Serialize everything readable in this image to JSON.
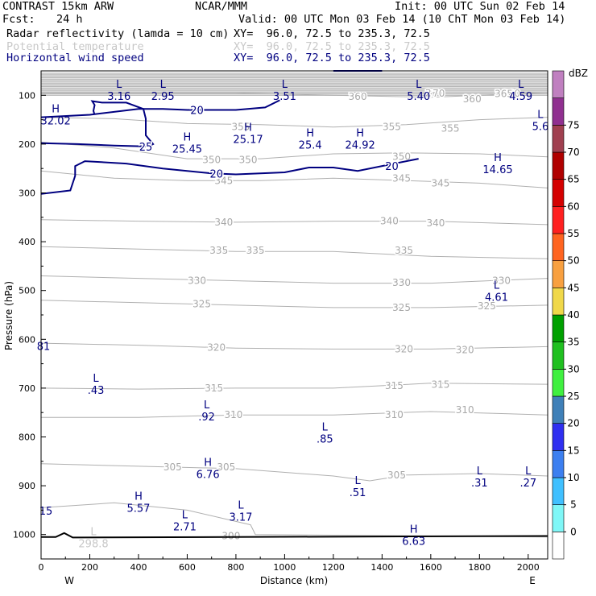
{
  "header": {
    "model": "CONTRAST 15km ARW",
    "org": "NCAR/MMM",
    "init": "Init: 00 UTC Sun 02 Feb 14",
    "fcst_label": "Fcst:",
    "fcst_value": "24 h",
    "valid": "Valid: 00 UTC Mon 03 Feb 14 (10 ChT Mon 03 Feb 14)",
    "fields": [
      {
        "name": "Radar reflectivity (lamda = 10 cm)",
        "xy": "XY=  96.0, 72.5 to 235.3, 72.5",
        "color": "#000000"
      },
      {
        "name": "Potential temperature",
        "xy": "XY=  96.0, 72.5 to 235.3, 72.5",
        "color": "#c8c8c8"
      },
      {
        "name": "Horizontal wind speed",
        "xy": "XY=  96.0, 72.5 to 235.3, 72.5",
        "color": "#000080"
      }
    ]
  },
  "chart_data": {
    "type": "contour",
    "xlabel": "Distance (km)",
    "ylabel": "Pressure (hPa)",
    "xlim": [
      0,
      2080
    ],
    "ylim": [
      1050,
      50
    ],
    "x_ticks": [
      0,
      200,
      400,
      600,
      800,
      1000,
      1200,
      1400,
      1600,
      1800,
      2000
    ],
    "y_ticks": [
      100,
      200,
      300,
      400,
      500,
      600,
      700,
      800,
      900,
      1000
    ],
    "direction_labels": {
      "left": "W",
      "right": "E"
    },
    "colorbar": {
      "unit": "dBZ",
      "levels": [
        -5,
        0,
        5,
        10,
        15,
        20,
        25,
        30,
        35,
        40,
        45,
        50,
        55,
        60,
        65,
        70,
        75,
        80
      ],
      "labels": [
        "0",
        "5",
        "10",
        "15",
        "20",
        "25",
        "30",
        "35",
        "40",
        "45",
        "50",
        "55",
        "60",
        "65",
        "70",
        "75"
      ],
      "colors": [
        "#ffffff",
        "#7ff7f7",
        "#40c0ff",
        "#3c7ff0",
        "#2f2ff0",
        "#3f80b8",
        "#40f040",
        "#20c020",
        "#00a000",
        "#f0d84a",
        "#f8a040",
        "#ff6420",
        "#ff2020",
        "#d40000",
        "#b00000",
        "#a04050",
        "#903090",
        "#c080c0"
      ]
    },
    "theta_contours": [
      {
        "level": 360,
        "points": [
          [
            0,
            95
          ],
          [
            400,
            95
          ],
          [
            800,
            95
          ],
          [
            1200,
            100
          ],
          [
            1600,
            104
          ],
          [
            1900,
            98
          ],
          [
            2080,
            94
          ]
        ],
        "labels": [
          [
            1300,
            103
          ],
          [
            1770,
            108
          ],
          [
            1930,
            96
          ]
        ]
      },
      {
        "level": 355,
        "points": [
          [
            0,
            145
          ],
          [
            300,
            148
          ],
          [
            600,
            158
          ],
          [
            900,
            160
          ],
          [
            1200,
            165
          ],
          [
            1500,
            160
          ],
          [
            1800,
            150
          ],
          [
            2080,
            145
          ]
        ],
        "labels": [
          [
            820,
            165
          ],
          [
            1440,
            165
          ],
          [
            1680,
            168
          ]
        ]
      },
      {
        "level": 350,
        "points": [
          [
            0,
            196
          ],
          [
            300,
            208
          ],
          [
            600,
            230
          ],
          [
            900,
            230
          ],
          [
            1200,
            220
          ],
          [
            1500,
            218
          ],
          [
            1800,
            220
          ],
          [
            2080,
            226
          ]
        ],
        "labels": [
          [
            700,
            232
          ],
          [
            850,
            232
          ],
          [
            1480,
            226
          ]
        ]
      },
      {
        "level": 345,
        "points": [
          [
            0,
            255
          ],
          [
            300,
            270
          ],
          [
            600,
            275
          ],
          [
            900,
            275
          ],
          [
            1200,
            270
          ],
          [
            1500,
            275
          ],
          [
            1800,
            280
          ],
          [
            2080,
            290
          ]
        ],
        "labels": [
          [
            750,
            275
          ],
          [
            1480,
            270
          ],
          [
            1640,
            280
          ]
        ]
      },
      {
        "level": 340,
        "points": [
          [
            0,
            355
          ],
          [
            400,
            358
          ],
          [
            800,
            360
          ],
          [
            1200,
            358
          ],
          [
            1600,
            358
          ],
          [
            2080,
            365
          ]
        ],
        "labels": [
          [
            750,
            360
          ],
          [
            1430,
            358
          ],
          [
            1620,
            362
          ]
        ]
      },
      {
        "level": 335,
        "points": [
          [
            0,
            410
          ],
          [
            400,
            415
          ],
          [
            800,
            420
          ],
          [
            1200,
            420
          ],
          [
            1600,
            430
          ],
          [
            2080,
            435
          ]
        ],
        "labels": [
          [
            730,
            418
          ],
          [
            880,
            418
          ],
          [
            1490,
            418
          ]
        ]
      },
      {
        "level": 330,
        "points": [
          [
            0,
            470
          ],
          [
            400,
            475
          ],
          [
            800,
            480
          ],
          [
            1200,
            485
          ],
          [
            1600,
            485
          ],
          [
            2080,
            475
          ]
        ],
        "labels": [
          [
            640,
            480
          ],
          [
            1480,
            484
          ],
          [
            1890,
            480
          ]
        ]
      },
      {
        "level": 325,
        "points": [
          [
            0,
            520
          ],
          [
            400,
            525
          ],
          [
            800,
            530
          ],
          [
            1200,
            535
          ],
          [
            1600,
            535
          ],
          [
            2080,
            530
          ]
        ],
        "labels": [
          [
            660,
            528
          ],
          [
            1480,
            535
          ],
          [
            1830,
            532
          ]
        ]
      },
      {
        "level": 320,
        "points": [
          [
            0,
            608
          ],
          [
            400,
            612
          ],
          [
            800,
            618
          ],
          [
            1200,
            620
          ],
          [
            1600,
            620
          ],
          [
            2080,
            615
          ]
        ],
        "labels": [
          [
            720,
            617
          ],
          [
            1490,
            620
          ],
          [
            1740,
            622
          ]
        ]
      },
      {
        "level": 315,
        "points": [
          [
            0,
            700
          ],
          [
            400,
            702
          ],
          [
            800,
            700
          ],
          [
            1200,
            700
          ],
          [
            1600,
            690
          ],
          [
            2080,
            692
          ]
        ],
        "labels": [
          [
            710,
            700
          ],
          [
            1450,
            695
          ],
          [
            1640,
            693
          ]
        ]
      },
      {
        "level": 310,
        "points": [
          [
            0,
            760
          ],
          [
            400,
            760
          ],
          [
            800,
            755
          ],
          [
            1200,
            755
          ],
          [
            1600,
            748
          ],
          [
            2080,
            755
          ]
        ],
        "labels": [
          [
            790,
            755
          ],
          [
            1450,
            755
          ],
          [
            1740,
            745
          ]
        ]
      },
      {
        "level": 305,
        "points": [
          [
            0,
            855
          ],
          [
            400,
            860
          ],
          [
            800,
            865
          ],
          [
            1200,
            880
          ],
          [
            1350,
            890
          ],
          [
            1500,
            878
          ],
          [
            1800,
            875
          ],
          [
            2080,
            880
          ]
        ],
        "labels": [
          [
            540,
            862
          ],
          [
            760,
            862
          ],
          [
            1460,
            878
          ]
        ]
      },
      {
        "level": 300,
        "points": [
          [
            0,
            945
          ],
          [
            300,
            935
          ],
          [
            600,
            950
          ],
          [
            860,
            980
          ],
          [
            880,
            1000
          ],
          [
            2080,
            1005
          ]
        ],
        "labels": [
          [
            780,
            1003
          ]
        ]
      }
    ],
    "theta_labels_extra": [
      {
        "text": "370",
        "x": 1620,
        "y": 96
      },
      {
        "text": "365",
        "x": 1900,
        "y": 97
      },
      {
        "text": "2",
        "x": 1590,
        "y": 95
      }
    ],
    "wind_contours": [
      {
        "level": 20,
        "points": [
          [
            0,
            145
          ],
          [
            200,
            140
          ],
          [
            400,
            128
          ],
          [
            500,
            128
          ],
          [
            600,
            130
          ],
          [
            800,
            130
          ],
          [
            920,
            125
          ],
          [
            980,
            110
          ]
        ],
        "labels": [
          [
            640,
            130
          ]
        ]
      },
      {
        "level": 25,
        "points": [
          [
            0,
            198
          ],
          [
            150,
            200
          ],
          [
            300,
            203
          ],
          [
            440,
            205
          ],
          [
            460,
            200
          ],
          [
            430,
            182
          ],
          [
            430,
            148
          ],
          [
            420,
            128
          ],
          [
            350,
            115
          ],
          [
            250,
            115
          ],
          [
            210,
            112
          ],
          [
            210,
            112
          ],
          [
            220,
            120
          ],
          [
            215,
            132
          ],
          [
            220,
            140
          ]
        ],
        "labels": [
          [
            430,
            205
          ]
        ]
      },
      {
        "level": 20,
        "points": [
          [
            0,
            302
          ],
          [
            120,
            295
          ],
          [
            140,
            265
          ],
          [
            140,
            245
          ],
          [
            180,
            235
          ],
          [
            350,
            240
          ],
          [
            500,
            250
          ],
          [
            700,
            260
          ],
          [
            800,
            262
          ],
          [
            1000,
            258
          ],
          [
            1100,
            248
          ],
          [
            1200,
            248
          ],
          [
            1300,
            255
          ],
          [
            1450,
            240
          ],
          [
            1550,
            230
          ]
        ],
        "labels": [
          [
            720,
            260
          ],
          [
            1440,
            245
          ]
        ]
      },
      {
        "level": 0,
        "points": [
          [
            1200,
            50
          ],
          [
            1400,
            50
          ]
        ],
        "labels": []
      }
    ],
    "marks": [
      {
        "kind": "L",
        "value": "3.16",
        "x": 320,
        "y": 88,
        "color": "#000080"
      },
      {
        "kind": "L",
        "value": "2.95",
        "x": 500,
        "y": 88,
        "color": "#000080"
      },
      {
        "kind": "L",
        "value": "3.51",
        "x": 1000,
        "y": 88,
        "color": "#000080"
      },
      {
        "kind": "L",
        "value": "5.40",
        "x": 1550,
        "y": 88,
        "color": "#000080"
      },
      {
        "kind": "L",
        "value": "4.59",
        "x": 1970,
        "y": 88,
        "color": "#000080"
      },
      {
        "kind": "H",
        "value": "32.02",
        "x": 60,
        "y": 138,
        "color": "#000080"
      },
      {
        "kind": "L",
        "value": "5.6",
        "x": 2050,
        "y": 150,
        "color": "#000080"
      },
      {
        "kind": "H",
        "value": "25.17",
        "x": 850,
        "y": 176,
        "color": "#000080"
      },
      {
        "kind": "H",
        "value": "25.4",
        "x": 1105,
        "y": 188,
        "color": "#000080"
      },
      {
        "kind": "H",
        "value": "24.92",
        "x": 1310,
        "y": 188,
        "color": "#000080"
      },
      {
        "kind": "H",
        "value": "25.45",
        "x": 600,
        "y": 196,
        "color": "#000080"
      },
      {
        "kind": "H",
        "value": "14.65",
        "x": 1875,
        "y": 238,
        "color": "#000080"
      },
      {
        "kind": "L",
        "value": "4.61",
        "x": 1870,
        "y": 500,
        "color": "#000080"
      },
      {
        "kind": "L",
        "value": "81",
        "x": 10,
        "y": 615,
        "color": "#000080",
        "nomark": true
      },
      {
        "kind": "L",
        "value": ".43",
        "x": 225,
        "y": 690,
        "color": "#000080"
      },
      {
        "kind": "L",
        "value": ".92",
        "x": 680,
        "y": 745,
        "color": "#000080"
      },
      {
        "kind": "L",
        "value": ".85",
        "x": 1165,
        "y": 790,
        "color": "#000080"
      },
      {
        "kind": "H",
        "value": "6.76",
        "x": 685,
        "y": 863,
        "color": "#000080"
      },
      {
        "kind": "L",
        "value": ".31",
        "x": 1800,
        "y": 880,
        "color": "#000080"
      },
      {
        "kind": "L",
        "value": ".27",
        "x": 2000,
        "y": 880,
        "color": "#000080"
      },
      {
        "kind": "L",
        "value": ".51",
        "x": 1300,
        "y": 900,
        "color": "#000080"
      },
      {
        "kind": "H",
        "value": "5.57",
        "x": 400,
        "y": 932,
        "color": "#000080"
      },
      {
        "kind": "L",
        "value": "3.17",
        "x": 820,
        "y": 950,
        "color": "#000080"
      },
      {
        "kind": "L",
        "value": "2.71",
        "x": 590,
        "y": 970,
        "color": "#000080"
      },
      {
        "kind": "L",
        "value": "15",
        "x": 20,
        "y": 953,
        "color": "#000080",
        "nomark": true
      },
      {
        "kind": "H",
        "value": "6.63",
        "x": 1530,
        "y": 1000,
        "color": "#000080"
      },
      {
        "kind": "L",
        "value": "298.8",
        "x": 215,
        "y": 1005,
        "color": "#c8c8c8"
      }
    ]
  }
}
